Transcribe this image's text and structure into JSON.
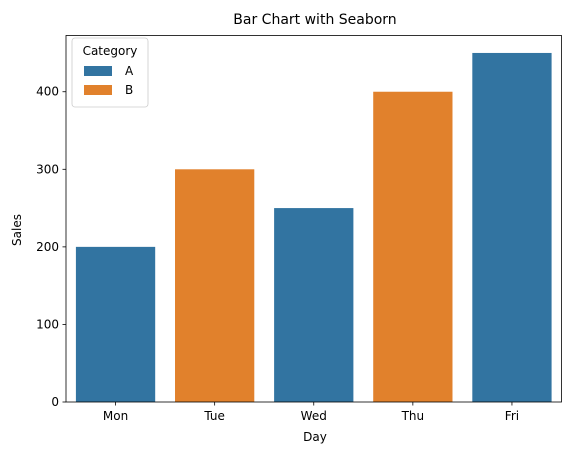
{
  "chart_data": {
    "type": "bar",
    "title": "Bar Chart with Seaborn",
    "xlabel": "Day",
    "ylabel": "Sales",
    "categories": [
      "Mon",
      "Tue",
      "Wed",
      "Thu",
      "Fri"
    ],
    "values": [
      200,
      300,
      250,
      400,
      450
    ],
    "hue": [
      "A",
      "B",
      "A",
      "B",
      "A"
    ],
    "ylim": [
      0,
      472.5
    ],
    "yticks": [
      0,
      100,
      200,
      300,
      400
    ],
    "grid": false,
    "legend": {
      "title": "Category",
      "placement": "top-left",
      "entries": [
        {
          "name": "A",
          "color": "#3274a1"
        },
        {
          "name": "B",
          "color": "#e1812c"
        }
      ]
    }
  }
}
